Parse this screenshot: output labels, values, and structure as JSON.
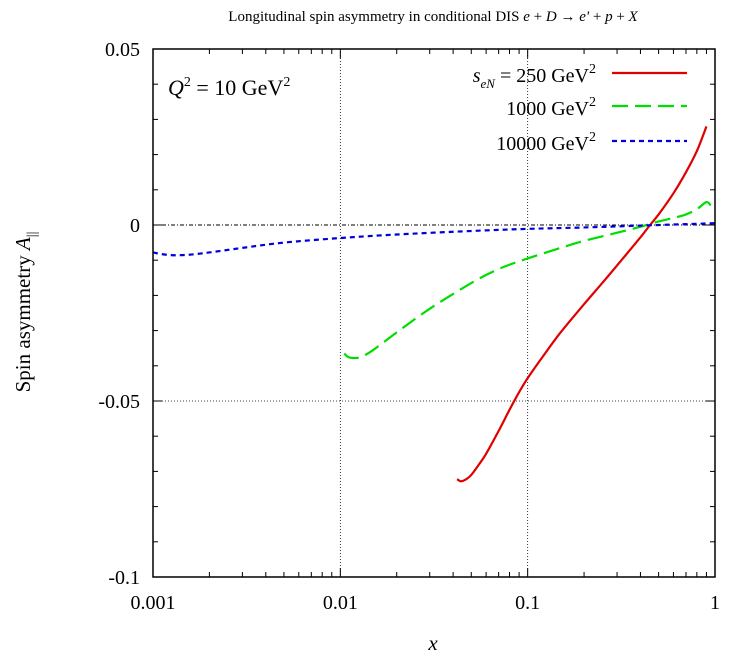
{
  "chart_data": {
    "type": "line",
    "title": "Longitudinal spin asymmetry in conditional DIS e + D → e' + p + X",
    "xlabel": "x",
    "ylabel": "Spin asymmetry A∥",
    "xscale": "log",
    "xlim": [
      0.001,
      1
    ],
    "ylim": [
      -0.1,
      0.05
    ],
    "xticks": [
      {
        "value": 0.001,
        "label": "0.001"
      },
      {
        "value": 0.01,
        "label": "0.01"
      },
      {
        "value": 0.1,
        "label": "0.1"
      },
      {
        "value": 1,
        "label": "1"
      }
    ],
    "yticks": [
      {
        "value": 0.05,
        "label": "0.05"
      },
      {
        "value": 0,
        "label": "0"
      },
      {
        "value": -0.05,
        "label": "-0.05"
      },
      {
        "value": -0.1,
        "label": "-0.1"
      }
    ],
    "grid": "dotted lines at x = 0.01, 0.1 and y = 0, -0.05",
    "annotation": "Q² = 10 GeV²",
    "legend_position": "top-right",
    "series": [
      {
        "name": "s_eN = 250 GeV²",
        "color": "#e00000",
        "style": "solid",
        "x": [
          0.042,
          0.044,
          0.047,
          0.05,
          0.055,
          0.06,
          0.07,
          0.08,
          0.09,
          0.1,
          0.12,
          0.15,
          0.2,
          0.25,
          0.3,
          0.4,
          0.45,
          0.5,
          0.6,
          0.7,
          0.8,
          0.9
        ],
        "y": [
          -0.0722,
          -0.0728,
          -0.0722,
          -0.071,
          -0.068,
          -0.065,
          -0.0585,
          -0.0525,
          -0.0475,
          -0.0435,
          -0.0375,
          -0.0305,
          -0.0225,
          -0.0165,
          -0.0115,
          -0.0035,
          0.0,
          0.003,
          0.009,
          0.015,
          0.021,
          0.028
        ]
      },
      {
        "name": "1000 GeV²",
        "color": "#00dd00",
        "style": "long-dash",
        "x": [
          0.0105,
          0.011,
          0.012,
          0.013,
          0.015,
          0.02,
          0.03,
          0.05,
          0.07,
          0.1,
          0.15,
          0.2,
          0.3,
          0.4,
          0.5,
          0.6,
          0.7,
          0.8,
          0.9,
          0.95
        ],
        "y": [
          -0.0365,
          -0.0375,
          -0.0378,
          -0.0374,
          -0.0355,
          -0.0305,
          -0.0238,
          -0.0165,
          -0.0125,
          -0.0095,
          -0.0065,
          -0.0045,
          -0.0022,
          -0.0005,
          0.001,
          0.002,
          0.003,
          0.0045,
          0.0065,
          0.0055
        ]
      },
      {
        "name": "10000 GeV²",
        "color": "#0000dd",
        "style": "short-dash",
        "x": [
          0.001,
          0.0012,
          0.0015,
          0.002,
          0.003,
          0.005,
          0.01,
          0.02,
          0.05,
          0.1,
          0.2,
          0.5,
          1.0
        ],
        "y": [
          -0.0078,
          -0.0085,
          -0.0085,
          -0.0078,
          -0.0065,
          -0.005,
          -0.0037,
          -0.0027,
          -0.0017,
          -0.0011,
          -0.0007,
          0.0,
          0.0005
        ]
      }
    ]
  }
}
